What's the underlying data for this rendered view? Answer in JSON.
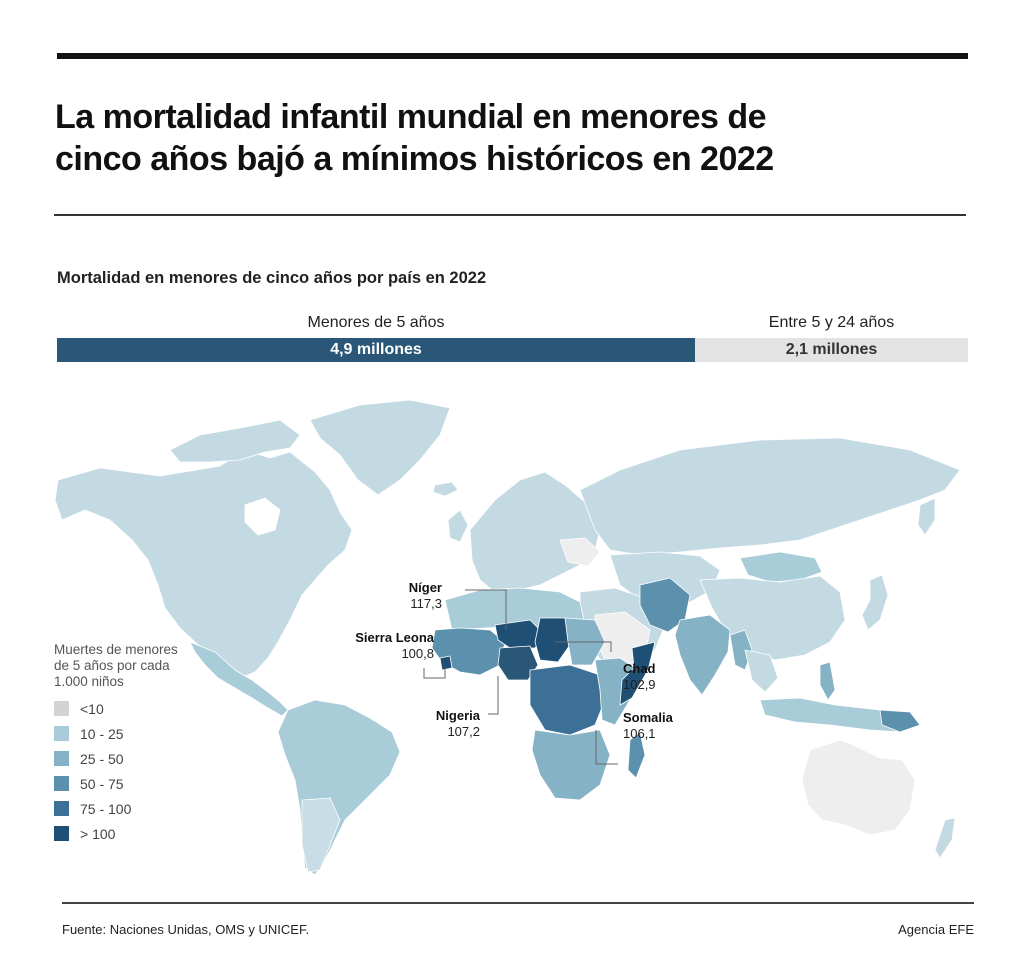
{
  "header": {
    "title_line1": "La mortalidad infantil mundial en menores de",
    "title_line2": "cinco años bajó a mínimos históricos en 2022"
  },
  "subtitle": "Mortalidad en menores de cinco años por país en 2022",
  "split_bar": {
    "segments": [
      {
        "label": "Menores de 5 años",
        "value_text": "4,9 millones",
        "value": 4.9,
        "color": "#2a5778"
      },
      {
        "label": "Entre 5 y 24 años",
        "value_text": "2,1 millones",
        "value": 2.1,
        "color": "#e3e3e3"
      }
    ]
  },
  "legend": {
    "title_line1": "Muertes de menores",
    "title_line2": "de 5 años por cada",
    "title_line3": "1.000 niños",
    "items": [
      {
        "label": "<10",
        "color": "#d3d3d3"
      },
      {
        "label": "10 - 25",
        "color": "#a9ccd9"
      },
      {
        "label": "25 - 50",
        "color": "#86b2c6"
      },
      {
        "label": "50 - 75",
        "color": "#5c91ad"
      },
      {
        "label": "75 - 100",
        "color": "#3d7096"
      },
      {
        "label": "> 100",
        "color": "#1f4f75"
      }
    ]
  },
  "callouts": [
    {
      "name": "Níger",
      "value": "117,3"
    },
    {
      "name": "Sierra Leona",
      "value": "100,8"
    },
    {
      "name": "Chad",
      "value": "102,9"
    },
    {
      "name": "Nigeria",
      "value": "107,2"
    },
    {
      "name": "Somalia",
      "value": "106,1"
    }
  ],
  "footer": {
    "source": "Fuente: Naciones Unidas, OMS y UNICEF.",
    "agency": "Agencia EFE"
  },
  "chart_data": {
    "type": "choropleth",
    "title": "Mortalidad en menores de cinco años por país en 2022",
    "legend_title": "Muertes de menores de 5 años por cada 1.000 niños",
    "bins": [
      "<10",
      "10 - 25",
      "25 - 50",
      "50 - 75",
      "75 - 100",
      "> 100"
    ],
    "highlighted": [
      {
        "country": "Níger",
        "value": 117.3
      },
      {
        "country": "Sierra Leona",
        "value": 100.8
      },
      {
        "country": "Chad",
        "value": 102.9
      },
      {
        "country": "Nigeria",
        "value": 107.2
      },
      {
        "country": "Somalia",
        "value": 106.1
      }
    ],
    "totals": [
      {
        "group": "Menores de 5 años",
        "millions": 4.9
      },
      {
        "group": "Entre 5 y 24 años",
        "millions": 2.1
      }
    ]
  }
}
